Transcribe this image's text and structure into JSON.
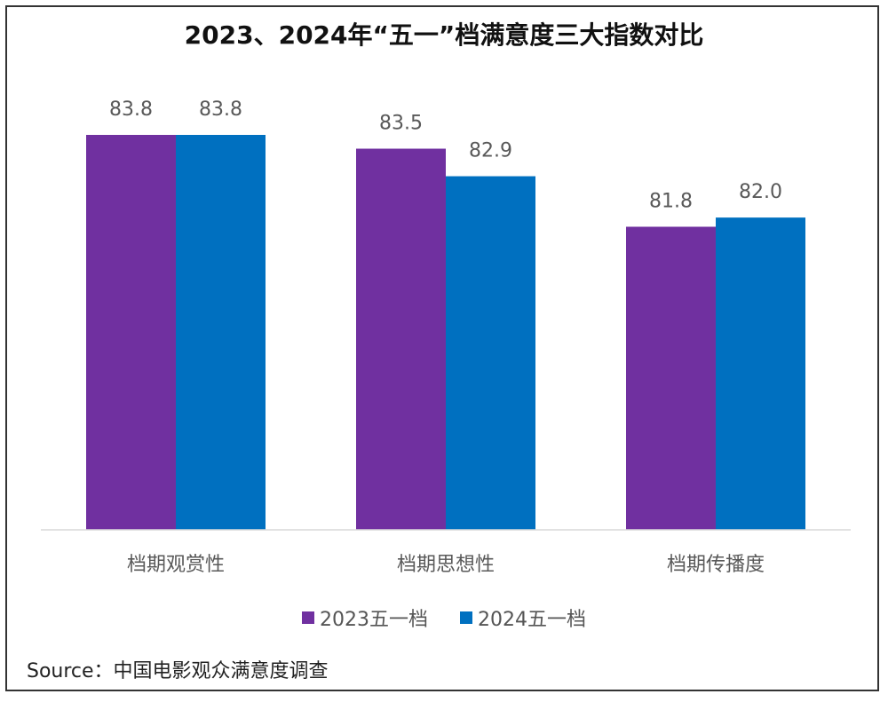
{
  "colors": {
    "series_2023": "#7030A0",
    "series_2024": "#0070C0",
    "axis": "#D9D9D9",
    "label": "#595959"
  },
  "chart_data": {
    "type": "bar",
    "title": "2023、2024年“五一”档满意度三大指数对比",
    "categories": [
      "档期观赏性",
      "档期思想性",
      "档期传播度"
    ],
    "series": [
      {
        "name": "2023五一档",
        "values": [
          83.8,
          83.5,
          81.8
        ]
      },
      {
        "name": "2024五一档",
        "values": [
          83.8,
          82.9,
          82.0
        ]
      }
    ],
    "legend": "bottom",
    "grid": false,
    "data_labels": [
      "83.8",
      "83.5",
      "81.8",
      "83.8",
      "82.9",
      "82.0"
    ]
  },
  "source": "Source：中国电影观众满意度调查"
}
